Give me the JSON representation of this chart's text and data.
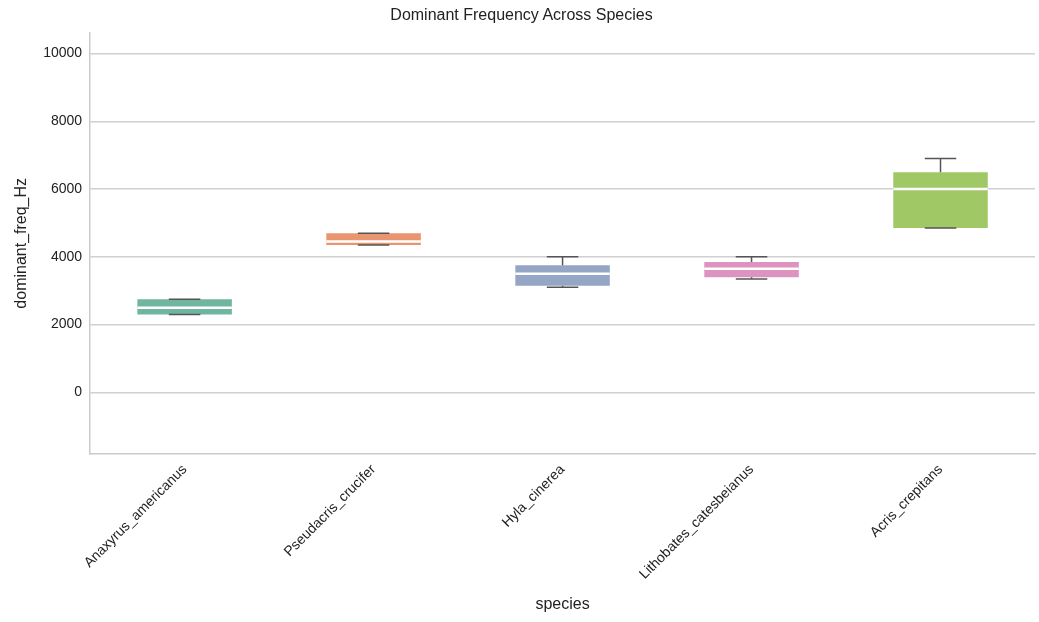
{
  "chart_data": {
    "type": "box",
    "title": "Dominant Frequency Across Species",
    "xlabel": "species",
    "ylabel": "dominant_freq_Hz",
    "categories": [
      "Anaxyrus_americanus",
      "Pseudacris_crucifer",
      "Hyla_cinerea",
      "Lithobates_catesbeianus",
      "Acris_crepitans"
    ],
    "colors": [
      "#70b5a0",
      "#e9956f",
      "#94a5c6",
      "#dc93bf",
      "#a0c864"
    ],
    "boxes": [
      {
        "low": 2300,
        "q1": 2300,
        "median": 2500,
        "q3": 2750,
        "high": 2750
      },
      {
        "low": 4350,
        "q1": 4350,
        "median": 4450,
        "q3": 4700,
        "high": 4700
      },
      {
        "low": 3100,
        "q1": 3150,
        "median": 3500,
        "q3": 3750,
        "high": 4000
      },
      {
        "low": 3350,
        "q1": 3400,
        "median": 3650,
        "q3": 3850,
        "high": 4000
      },
      {
        "low": 4850,
        "q1": 4850,
        "median": 6000,
        "q3": 6500,
        "high": 6900
      }
    ],
    "ylim": [
      -1800,
      10600
    ],
    "yticks": [
      0,
      2000,
      4000,
      6000,
      8000,
      10000
    ],
    "grid": "y",
    "legend": false
  }
}
